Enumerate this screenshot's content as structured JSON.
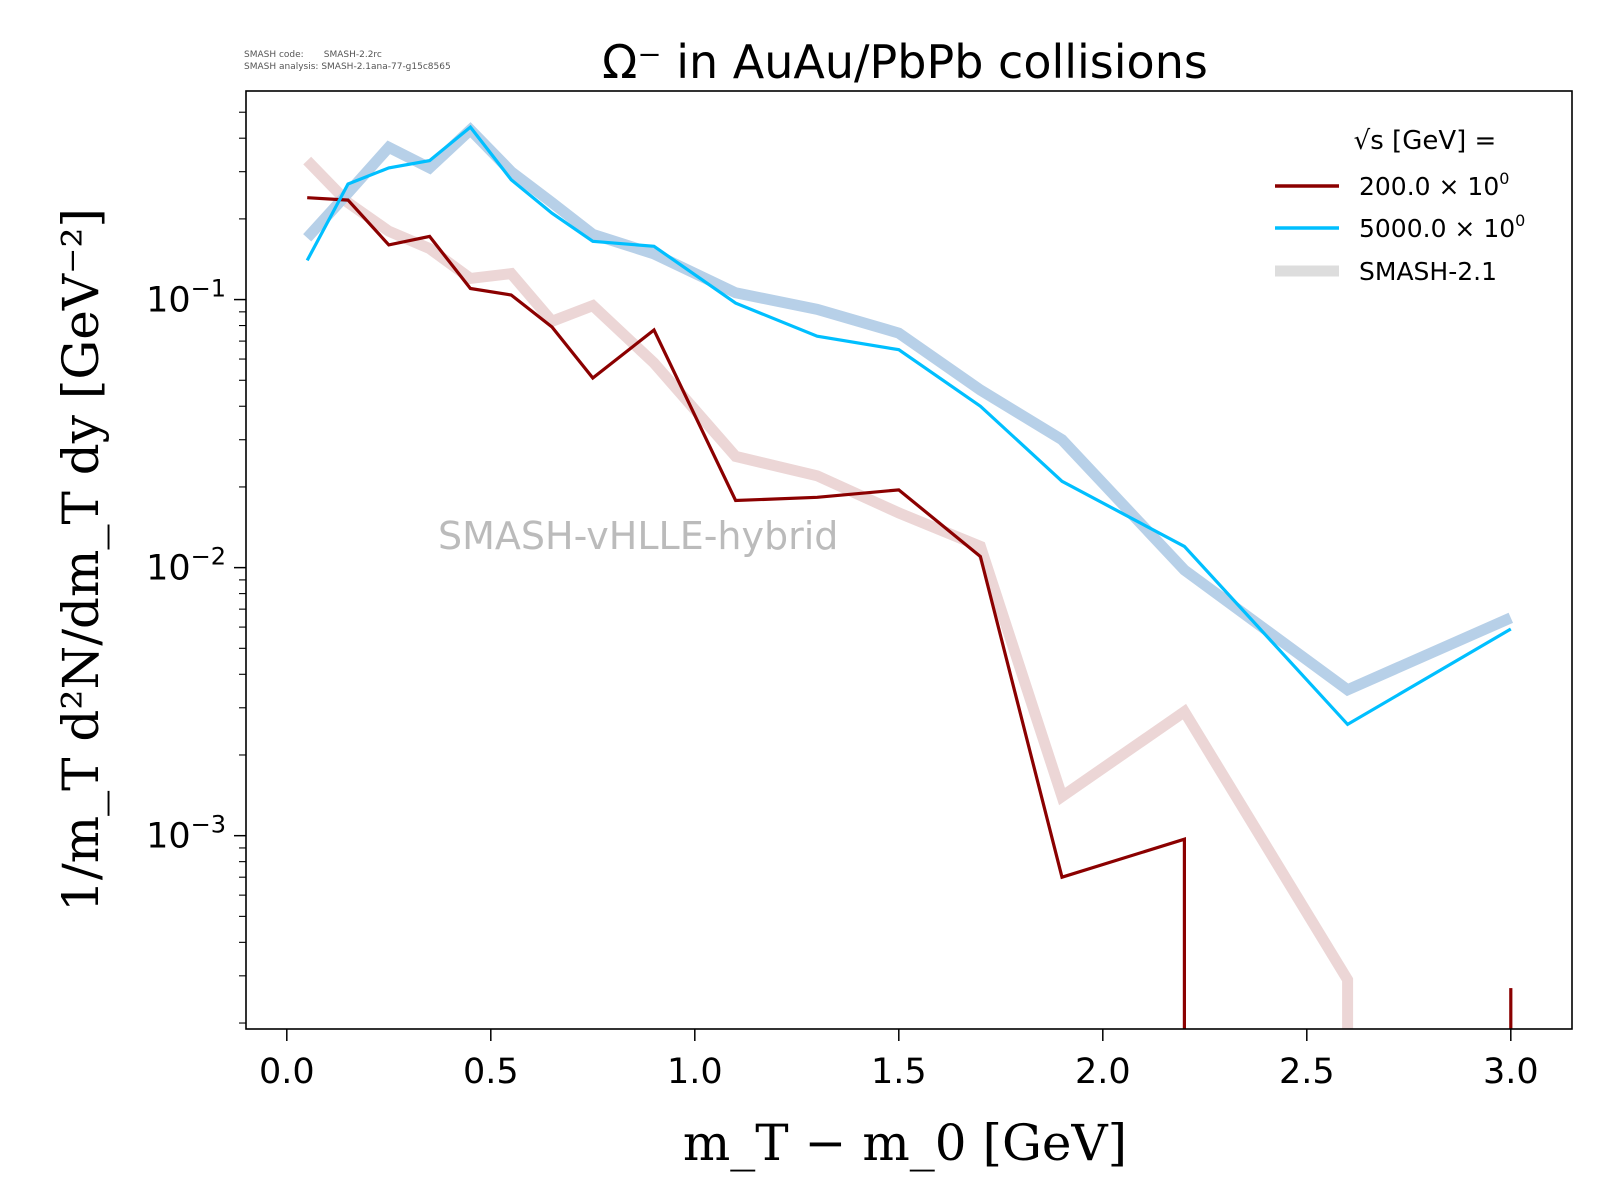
{
  "meta": {
    "code_label": "SMASH code:",
    "code_value": "SMASH-2.2rc",
    "analysis_label": "SMASH analysis:",
    "analysis_value": "SMASH-2.1ana-77-g15c8565"
  },
  "watermark": "SMASH-vHLLE-hybrid",
  "colors": {
    "series_200": "#8b0000",
    "series_5000": "#00bfff",
    "ref_200": "#ecd6d6",
    "ref_5000": "#b7d0e8",
    "legend_ref": "#dddddd",
    "watermark": "#bbbbbb"
  },
  "chart_data": {
    "type": "line",
    "title": "Ω⁻ in AuAu/PbPb collisions",
    "xlabel": "m_T − m_0 [GeV]",
    "ylabel": "1/m_T d²N/dm_T dy [GeV⁻²]",
    "xlim": [
      -0.1,
      3.15
    ],
    "ylim": [
      0.00019,
      0.6
    ],
    "yscale": "log",
    "x_ticks": [
      "0.0",
      "0.5",
      "1.0",
      "1.5",
      "2.0",
      "2.5",
      "3.0"
    ],
    "y_ticks": [
      {
        "base": "10",
        "exp": "−1"
      },
      {
        "base": "10",
        "exp": "−2"
      },
      {
        "base": "10",
        "exp": "−3"
      }
    ],
    "legend": {
      "title": "√s  [GeV] =",
      "placement": "top-right",
      "entries": [
        {
          "label": "200.0 × 10",
          "exp": "0"
        },
        {
          "label": "5000.0 × 10",
          "exp": "0"
        },
        {
          "label": "SMASH-2.1",
          "exp": ""
        }
      ]
    },
    "series": [
      {
        "name": "200.0 × 10⁰",
        "x": [
          0.05,
          0.15,
          0.25,
          0.35,
          0.45,
          0.55,
          0.65,
          0.75,
          0.9,
          1.1,
          1.3,
          1.5,
          1.7,
          1.9,
          2.2,
          2.2
        ],
        "y": [
          0.24,
          0.235,
          0.16,
          0.172,
          0.11,
          0.104,
          0.079,
          0.051,
          0.077,
          0.0178,
          0.0183,
          0.0195,
          0.011,
          0.0007,
          0.00097,
          0.00019
        ],
        "extra_segment": {
          "x": [
            3.0,
            3.0
          ],
          "y": [
            0.00027,
            0.00019
          ]
        }
      },
      {
        "name": "5000.0 × 10⁰",
        "x": [
          0.05,
          0.15,
          0.25,
          0.35,
          0.45,
          0.55,
          0.65,
          0.75,
          0.9,
          1.1,
          1.3,
          1.5,
          1.7,
          1.9,
          2.2,
          2.6,
          3.0
        ],
        "y": [
          0.14,
          0.27,
          0.31,
          0.33,
          0.44,
          0.28,
          0.21,
          0.165,
          0.158,
          0.097,
          0.073,
          0.065,
          0.04,
          0.021,
          0.012,
          0.0026,
          0.0059
        ]
      },
      {
        "name": "SMASH-2.1 (200.0)",
        "x": [
          0.05,
          0.15,
          0.25,
          0.35,
          0.45,
          0.55,
          0.65,
          0.75,
          0.9,
          1.1,
          1.3,
          1.5,
          1.7,
          1.9,
          2.2,
          2.6,
          2.6
        ],
        "y": [
          0.33,
          0.23,
          0.18,
          0.155,
          0.12,
          0.125,
          0.083,
          0.095,
          0.058,
          0.026,
          0.022,
          0.016,
          0.012,
          0.0014,
          0.0029,
          0.00029,
          0.00019
        ]
      },
      {
        "name": "SMASH-2.1 (5000.0)",
        "x": [
          0.05,
          0.15,
          0.25,
          0.35,
          0.45,
          0.55,
          0.65,
          0.75,
          0.9,
          1.1,
          1.3,
          1.5,
          1.7,
          1.9,
          2.2,
          2.6,
          3.0
        ],
        "y": [
          0.17,
          0.25,
          0.37,
          0.31,
          0.43,
          0.3,
          0.23,
          0.175,
          0.148,
          0.106,
          0.092,
          0.075,
          0.046,
          0.03,
          0.0098,
          0.0035,
          0.0065
        ]
      }
    ]
  }
}
